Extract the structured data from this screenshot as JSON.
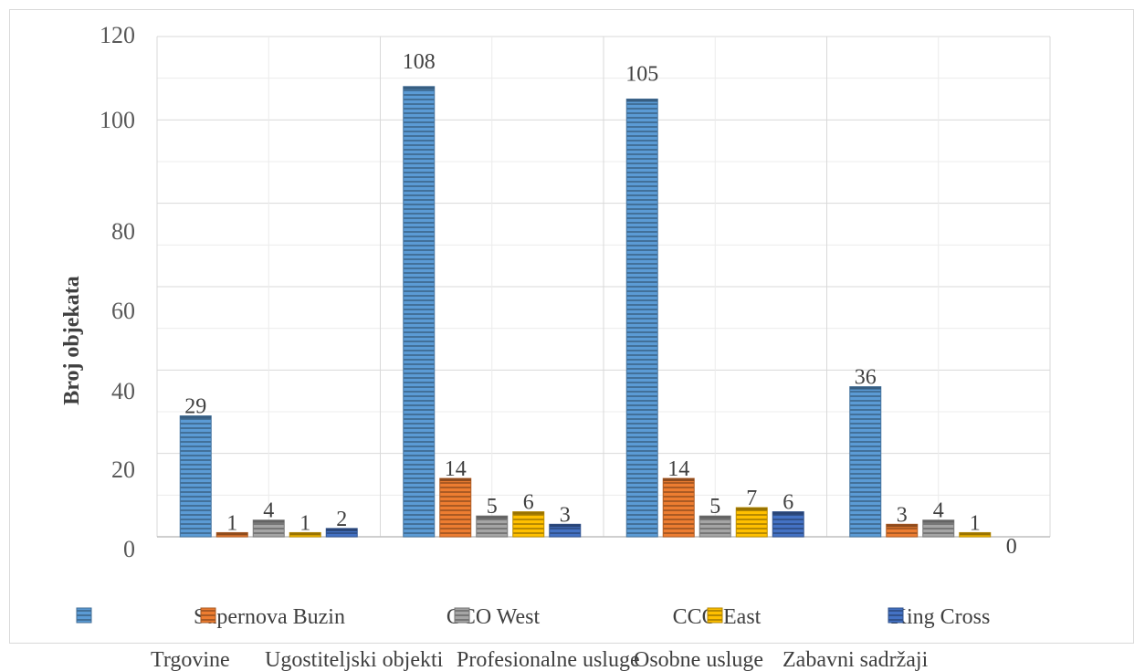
{
  "chart_data": {
    "type": "bar",
    "ylabel": "Broj objekata",
    "ylim": [
      0,
      120
    ],
    "y_ticks": [
      "0",
      "20",
      "40",
      "60",
      "80",
      "100",
      "120"
    ],
    "grid": true,
    "legend_position": "bottom",
    "categories": [
      "Supernova Buzin",
      "CCO West",
      "CCO East",
      "King Cross"
    ],
    "series": [
      {
        "name": "Trgovine",
        "values": [
          29,
          108,
          105,
          36
        ],
        "color": "#5b9bd5"
      },
      {
        "name": "Ugostiteljski objekti",
        "values": [
          1,
          14,
          14,
          3
        ],
        "color": "#ed7d31"
      },
      {
        "name": "Profesionalne usluge",
        "values": [
          4,
          5,
          5,
          4
        ],
        "color": "#a5a5a5"
      },
      {
        "name": "Osobne usluge",
        "values": [
          1,
          6,
          7,
          1
        ],
        "color": "#ffc000"
      },
      {
        "name": "Zabavni sadržaji",
        "values": [
          2,
          3,
          6,
          0
        ],
        "color": "#4472c4"
      }
    ]
  }
}
